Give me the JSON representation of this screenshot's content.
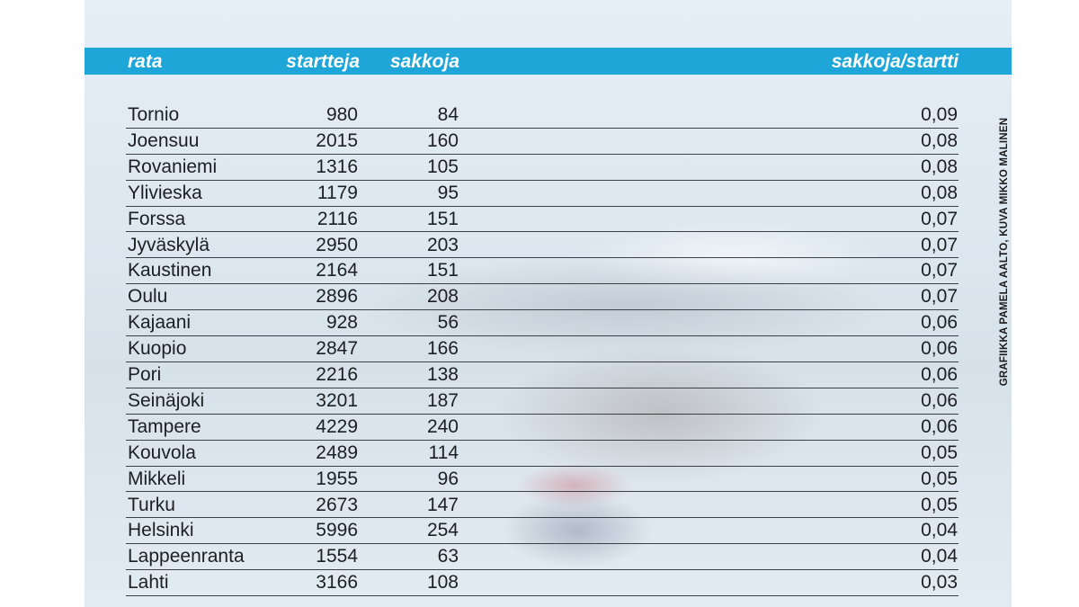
{
  "chart_data": {
    "type": "table",
    "columns": [
      "rata",
      "startteja",
      "sakkoja",
      "sakkoja/startti"
    ],
    "rows": [
      {
        "rata": "Tornio",
        "startteja": "980",
        "sakkoja": "84",
        "ratio": "0,09"
      },
      {
        "rata": "Joensuu",
        "startteja": "2015",
        "sakkoja": "160",
        "ratio": "0,08"
      },
      {
        "rata": "Rovaniemi",
        "startteja": "1316",
        "sakkoja": "105",
        "ratio": "0,08"
      },
      {
        "rata": "Ylivieska",
        "startteja": "1179",
        "sakkoja": "95",
        "ratio": "0,08"
      },
      {
        "rata": "Forssa",
        "startteja": "2116",
        "sakkoja": "151",
        "ratio": "0,07"
      },
      {
        "rata": "Jyväskylä",
        "startteja": "2950",
        "sakkoja": "203",
        "ratio": "0,07"
      },
      {
        "rata": "Kaustinen",
        "startteja": "2164",
        "sakkoja": "151",
        "ratio": "0,07"
      },
      {
        "rata": "Oulu",
        "startteja": "2896",
        "sakkoja": "208",
        "ratio": "0,07"
      },
      {
        "rata": "Kajaani",
        "startteja": "928",
        "sakkoja": "56",
        "ratio": "0,06"
      },
      {
        "rata": "Kuopio",
        "startteja": "2847",
        "sakkoja": "166",
        "ratio": "0,06"
      },
      {
        "rata": "Pori",
        "startteja": "2216",
        "sakkoja": "138",
        "ratio": "0,06"
      },
      {
        "rata": "Seinäjoki",
        "startteja": "3201",
        "sakkoja": "187",
        "ratio": "0,06"
      },
      {
        "rata": "Tampere",
        "startteja": "4229",
        "sakkoja": "240",
        "ratio": "0,06"
      },
      {
        "rata": "Kouvola",
        "startteja": "2489",
        "sakkoja": "114",
        "ratio": "0,05"
      },
      {
        "rata": "Mikkeli",
        "startteja": "1955",
        "sakkoja": "96",
        "ratio": "0,05"
      },
      {
        "rata": "Turku",
        "startteja": "2673",
        "sakkoja": "147",
        "ratio": "0,05"
      },
      {
        "rata": "Helsinki",
        "startteja": "5996",
        "sakkoja": "254",
        "ratio": "0,04"
      },
      {
        "rata": "Lappeenranta",
        "startteja": "1554",
        "sakkoja": "63",
        "ratio": "0,04"
      },
      {
        "rata": "Lahti",
        "startteja": "3166",
        "sakkoja": "108",
        "ratio": "0,03"
      }
    ],
    "header_color": "#1fa6d8"
  },
  "credit": "GRAFIIKKA PAMELA AALTO, KUVA MIKKO MALINEN"
}
